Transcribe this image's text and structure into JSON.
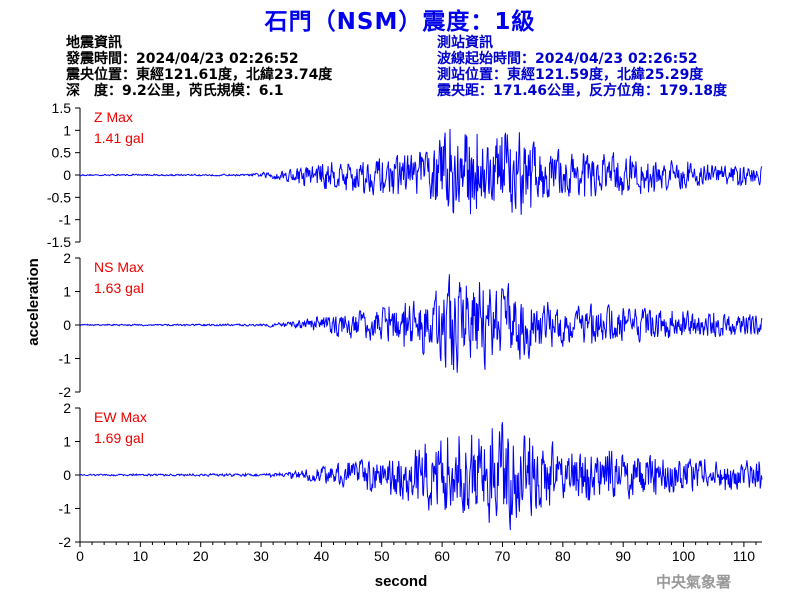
{
  "title": "石門（NSM）震度：1級",
  "quake_info": {
    "heading": "地震資訊",
    "time": "發震時間：2024/04/23 02:26:52",
    "location": "震央位置：東經121.61度，北緯23.74度",
    "depth_magnitude": "深　度：9.2公里，芮氏規模：6.1"
  },
  "station_info": {
    "heading": "測站資訊",
    "wave_start": "波線起始時間：2024/04/23 02:26:52",
    "location": "測站位置：東經121.59度，北緯25.29度",
    "distance": "震央距：171.46公里，反方位角：179.18度"
  },
  "credit": "中央氣象署",
  "colors": {
    "trace": "#0000ff",
    "label": "#ee0000",
    "title": "#0000ee"
  },
  "chart_data": [
    {
      "type": "line",
      "component": "Z",
      "label": "Z Max",
      "max_text": "1.41 gal",
      "ylim": [
        -1.5,
        1.5
      ],
      "yticks": [
        -1.5,
        -1,
        -0.5,
        0,
        0.5,
        1,
        1.5
      ],
      "ytick_labels": [
        "-1.5",
        "-1",
        "-0.5",
        "0",
        "0.5",
        "1",
        "1.5"
      ],
      "max": 1.41,
      "envelope": [
        [
          0,
          0.015
        ],
        [
          28,
          0.02
        ],
        [
          30,
          0.05
        ],
        [
          35,
          0.15
        ],
        [
          40,
          0.3
        ],
        [
          45,
          0.35
        ],
        [
          50,
          0.4
        ],
        [
          55,
          0.45
        ],
        [
          58,
          0.6
        ],
        [
          60,
          0.9
        ],
        [
          63,
          1.2
        ],
        [
          66,
          0.9
        ],
        [
          70,
          0.85
        ],
        [
          72,
          1.0
        ],
        [
          75,
          0.7
        ],
        [
          80,
          0.5
        ],
        [
          90,
          0.45
        ],
        [
          100,
          0.3
        ],
        [
          113,
          0.2
        ]
      ]
    },
    {
      "type": "line",
      "component": "NS",
      "label": "NS Max",
      "max_text": "1.63 gal",
      "ylim": [
        -2,
        2
      ],
      "yticks": [
        -2,
        -1,
        0,
        1,
        2
      ],
      "ytick_labels": [
        "-2",
        "-1",
        "0",
        "1",
        "2"
      ],
      "max": 1.63,
      "envelope": [
        [
          0,
          0.02
        ],
        [
          30,
          0.03
        ],
        [
          35,
          0.1
        ],
        [
          40,
          0.25
        ],
        [
          45,
          0.4
        ],
        [
          50,
          0.5
        ],
        [
          55,
          0.7
        ],
        [
          58,
          0.9
        ],
        [
          62,
          1.4
        ],
        [
          64,
          1.5
        ],
        [
          68,
          1.1
        ],
        [
          72,
          1.0
        ],
        [
          75,
          0.8
        ],
        [
          80,
          0.6
        ],
        [
          90,
          0.5
        ],
        [
          100,
          0.4
        ],
        [
          113,
          0.3
        ]
      ]
    },
    {
      "type": "line",
      "component": "EW",
      "label": "EW Max",
      "max_text": "1.69 gal",
      "ylim": [
        -2,
        2
      ],
      "yticks": [
        -2,
        -1,
        0,
        1,
        2
      ],
      "ytick_labels": [
        "-2",
        "-1",
        "0",
        "1",
        "2"
      ],
      "max": 1.69,
      "envelope": [
        [
          0,
          0.02
        ],
        [
          30,
          0.04
        ],
        [
          35,
          0.1
        ],
        [
          40,
          0.25
        ],
        [
          50,
          0.5
        ],
        [
          55,
          0.8
        ],
        [
          60,
          1.1
        ],
        [
          65,
          1.2
        ],
        [
          70,
          1.5
        ],
        [
          72,
          1.3
        ],
        [
          76,
          1.0
        ],
        [
          80,
          0.8
        ],
        [
          90,
          0.7
        ],
        [
          100,
          0.5
        ],
        [
          113,
          0.4
        ]
      ]
    }
  ],
  "x_axis": {
    "label": "second",
    "xlim": [
      0,
      113
    ],
    "ticks": [
      0,
      10,
      20,
      30,
      40,
      50,
      60,
      70,
      80,
      90,
      100,
      110
    ],
    "tick_labels": [
      "0",
      "10",
      "20",
      "30",
      "40",
      "50",
      "60",
      "70",
      "80",
      "90",
      "100",
      "110"
    ]
  },
  "y_axis_label": "acceleration"
}
